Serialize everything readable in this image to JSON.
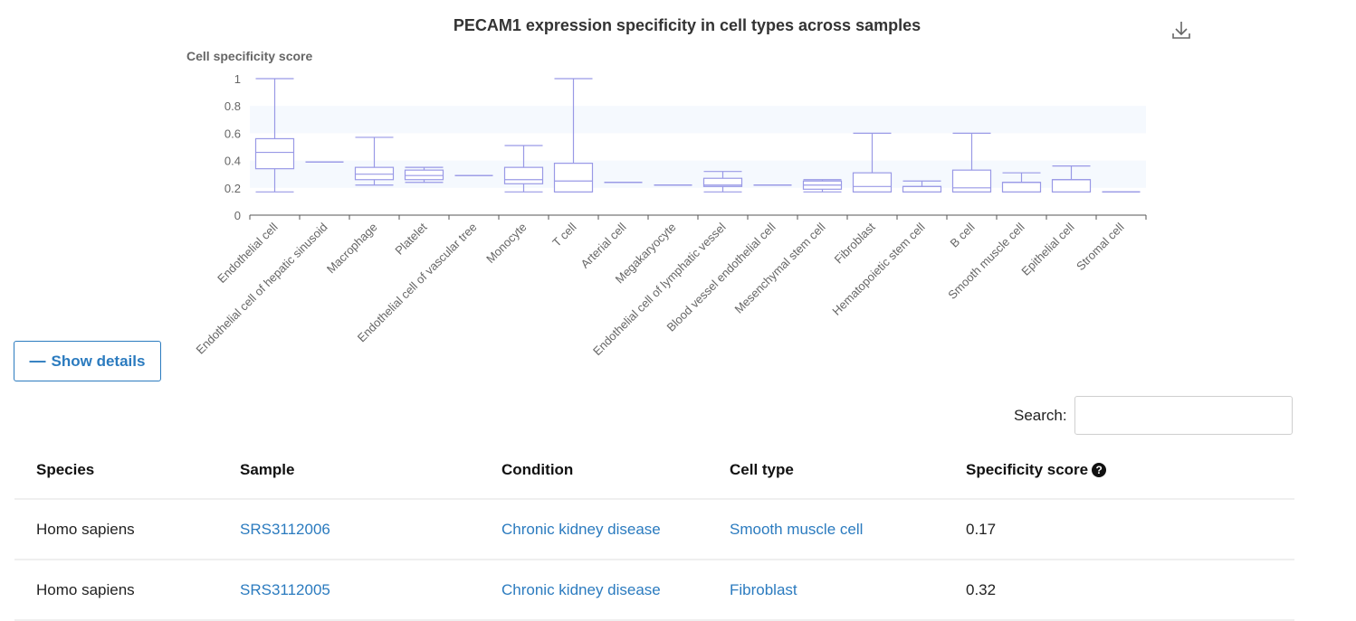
{
  "chart_data": {
    "type": "box",
    "title": "PECAM1 expression specificity in cell types across samples",
    "ylabel": "Cell specificity score",
    "ylim": [
      0,
      1
    ],
    "yticks": [
      "0",
      "0.2",
      "0.4",
      "0.6",
      "0.8",
      "1"
    ],
    "categories": [
      "Endothelial cell",
      "Endothelial cell of hepatic sinusoid",
      "Macrophage",
      "Platelet",
      "Endothelial cell of vascular tree",
      "Monocyte",
      "T cell",
      "Arterial cell",
      "Megakaryocyte",
      "Endothelial cell of lymphatic vessel",
      "Blood vessel endothelial cell",
      "Mesenchymal stem cell",
      "Fibroblast",
      "Hematopoietic stem cell",
      "B cell",
      "Smooth muscle cell",
      "Epithelial cell",
      "Stromal cell"
    ],
    "boxes": [
      {
        "min": 0.17,
        "q1": 0.34,
        "median": 0.46,
        "q3": 0.56,
        "max": 1.0
      },
      {
        "min": 0.39,
        "q1": 0.39,
        "median": 0.39,
        "q3": 0.39,
        "max": 0.39
      },
      {
        "min": 0.22,
        "q1": 0.26,
        "median": 0.3,
        "q3": 0.35,
        "max": 0.57
      },
      {
        "min": 0.24,
        "q1": 0.26,
        "median": 0.29,
        "q3": 0.33,
        "max": 0.35
      },
      {
        "min": 0.29,
        "q1": 0.29,
        "median": 0.29,
        "q3": 0.29,
        "max": 0.29
      },
      {
        "min": 0.17,
        "q1": 0.23,
        "median": 0.26,
        "q3": 0.35,
        "max": 0.51
      },
      {
        "min": 0.17,
        "q1": 0.17,
        "median": 0.25,
        "q3": 0.38,
        "max": 1.0
      },
      {
        "min": 0.24,
        "q1": 0.24,
        "median": 0.24,
        "q3": 0.24,
        "max": 0.24
      },
      {
        "min": 0.22,
        "q1": 0.22,
        "median": 0.22,
        "q3": 0.22,
        "max": 0.22
      },
      {
        "min": 0.17,
        "q1": 0.21,
        "median": 0.22,
        "q3": 0.27,
        "max": 0.32
      },
      {
        "min": 0.22,
        "q1": 0.22,
        "median": 0.22,
        "q3": 0.22,
        "max": 0.22
      },
      {
        "min": 0.17,
        "q1": 0.19,
        "median": 0.22,
        "q3": 0.25,
        "max": 0.26
      },
      {
        "min": 0.17,
        "q1": 0.17,
        "median": 0.21,
        "q3": 0.31,
        "max": 0.6
      },
      {
        "min": 0.17,
        "q1": 0.17,
        "median": 0.21,
        "q3": 0.21,
        "max": 0.25
      },
      {
        "min": 0.17,
        "q1": 0.17,
        "median": 0.2,
        "q3": 0.33,
        "max": 0.6
      },
      {
        "min": 0.17,
        "q1": 0.17,
        "median": 0.24,
        "q3": 0.24,
        "max": 0.31
      },
      {
        "min": 0.17,
        "q1": 0.17,
        "median": 0.26,
        "q3": 0.26,
        "max": 0.36
      },
      {
        "min": 0.17,
        "q1": 0.17,
        "median": 0.17,
        "q3": 0.17,
        "max": 0.17
      }
    ],
    "grid": false,
    "legend": "none"
  },
  "toolbar": {
    "download_icon": "download-icon",
    "show_details_label": "Show details",
    "show_details_icon": "minus-icon"
  },
  "search": {
    "label": "Search:",
    "value": "",
    "placeholder": ""
  },
  "table": {
    "headers": {
      "species": "Species",
      "sample": "Sample",
      "condition": "Condition",
      "cell_type": "Cell type",
      "score": "Specificity score",
      "score_help_icon": "question-circle-icon"
    },
    "rows": [
      {
        "species": "Homo sapiens",
        "sample": "SRS3112006",
        "condition": "Chronic kidney disease",
        "cell_type": "Smooth muscle cell",
        "score": "0.17"
      },
      {
        "species": "Homo sapiens",
        "sample": "SRS3112005",
        "condition": "Chronic kidney disease",
        "cell_type": "Fibroblast",
        "score": "0.32"
      }
    ]
  },
  "colors": {
    "box_stroke": "#9999e6",
    "link": "#2b7bbf",
    "band": "#f5f9fe"
  }
}
